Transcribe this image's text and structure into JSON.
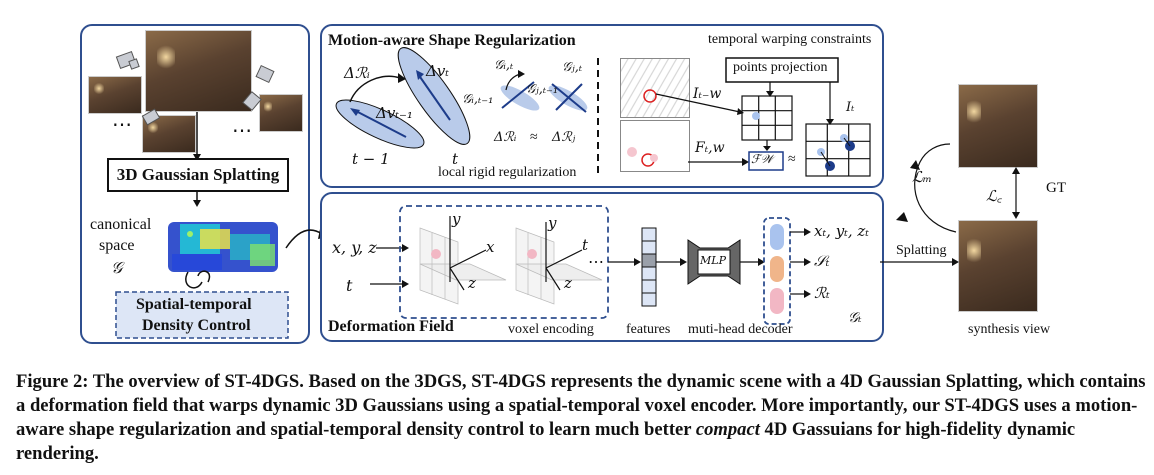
{
  "left_panel": {
    "gaussian_splatting_label": "3D Gaussian Splatting",
    "canonical_label": "canonical",
    "space_label": "space",
    "canonical_symbol": "𝒢",
    "density_line1": "Spatial-temporal",
    "density_line2": "Density Control",
    "ellipsis_left": "⋯",
    "ellipsis_right": "⋯"
  },
  "shape_panel": {
    "title": "Motion-aware Shape Regularization",
    "temporal_label": "temporal warping constraints",
    "local_rigid_label": "local rigid regularization",
    "points_projection_label": "points projection",
    "delta_R_i": "Δℛᵢ",
    "delta_v_t": "Δvₜ",
    "delta_v_t1": "Δvₜ₋₁",
    "t_minus_1": "t − 1",
    "t": "t",
    "g_it": "𝒢ᵢ,ₜ",
    "g_jt": "𝒢ⱼ,ₜ",
    "g_it1": "𝒢ᵢ,ₜ₋₁",
    "g_jt1": "𝒢ⱼ,ₜ₋₁",
    "rigid_eq_left": "Δℛᵢ",
    "approx": "≈",
    "rigid_eq_right": "Δℛⱼ",
    "I_tw": "Iₜ₋w",
    "F_tw": "Fₜ,w",
    "I_t": "Iₜ",
    "FW": "ℱ𝒲"
  },
  "deformation_panel": {
    "title": "Deformation Field",
    "input_xyz": "x, y, z",
    "input_t": "t",
    "voxel_label": "voxel encoding",
    "features_label": "features",
    "mlp_label": "MLP",
    "decoder_label": "muti-head decoder",
    "out_xyz": "xₜ, yₜ, zₜ",
    "out_s": "𝒮ₜ",
    "out_r": "ℛₜ",
    "g_t": "𝒢ₜ",
    "axis_x": "x",
    "axis_y": "y",
    "axis_z": "z",
    "axis_t": "t",
    "dots": "⋯"
  },
  "right": {
    "splatting_label": "Splatting",
    "gt_label": "GT",
    "synthesis_label": "synthesis view",
    "loss_m": "ℒₘ",
    "loss_c": "ℒ꜀"
  },
  "caption": {
    "text_before": "Figure 2: The overview of ST-4DGS. Based on the 3DGS, ST-4DGS represents the dynamic scene with a 4D Gaussian Splatting, which contains a deformation field that warps dynamic 3D Gaussians using a spatial-temporal voxel encoder. More importantly, our ST-4DGS uses a motion-aware shape regularization and spatial-temporal density control to learn much better ",
    "text_italic": "compact",
    "text_after": " 4D Gassuians for high-fidelity dynamic rendering."
  },
  "colors": {
    "panel_border": "#2f4f8f",
    "ellipse_fill": "#b9cbea",
    "dark_blue": "#1d3c8a",
    "pink": "#f2b7c4",
    "orange": "#f0b58a",
    "light_blue": "#a9c3ee"
  }
}
